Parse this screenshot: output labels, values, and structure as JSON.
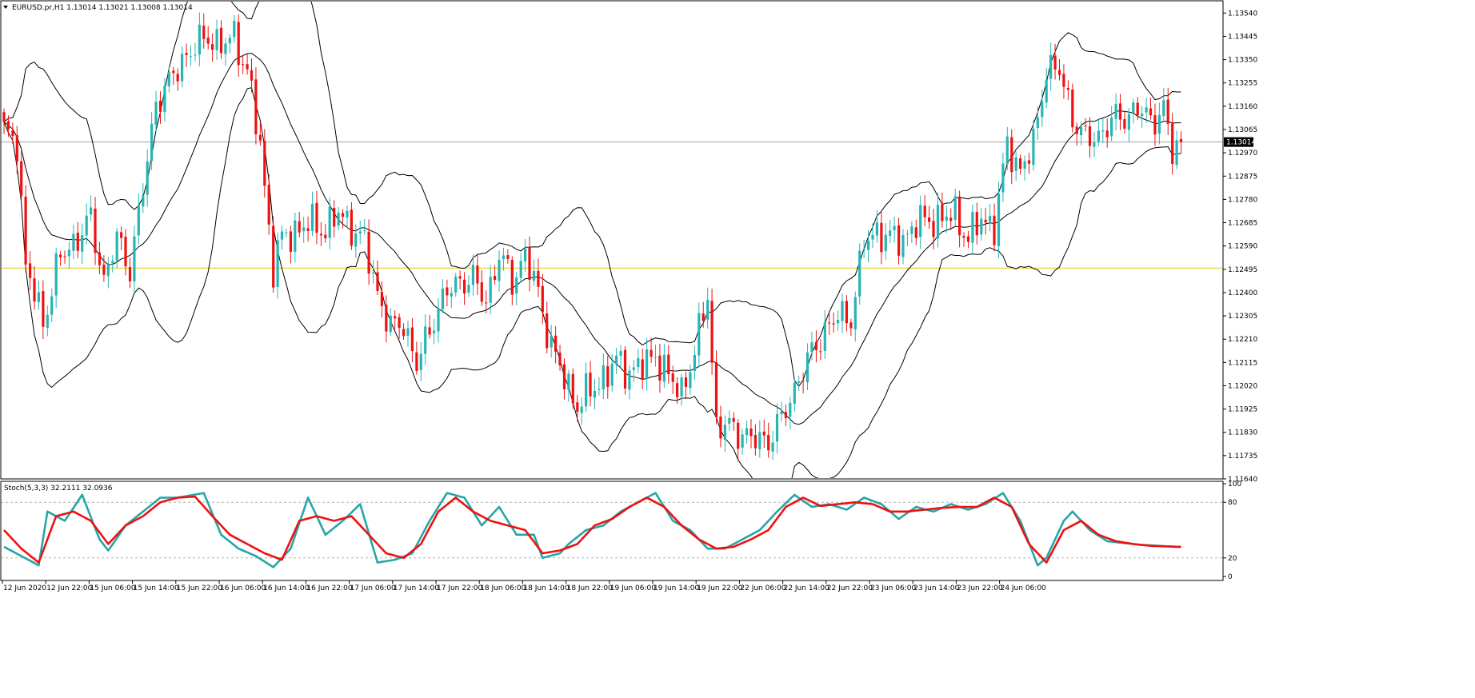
{
  "header": {
    "symbol_info": "EURUSD.pr,H1  1.13014 1.13021 1.13008 1.13014",
    "dropdown_icon": "triangle-down-icon"
  },
  "indicator": {
    "label": "Stoch(5,3,3) 32.2111 32.0936"
  },
  "colors": {
    "bull": "#26b5b5",
    "bear": "#ee1111",
    "bands": "#000000",
    "level_line": "#e8c800",
    "price_line": "#a0a0a0",
    "stoch_main": "#26a6a6",
    "stoch_signal": "#ee1111"
  },
  "chart_data": [
    {
      "type": "candlestick",
      "title": "EURUSD.pr,H1",
      "ylim": [
        1.1164,
        1.1359
      ],
      "y_ticks": [
        "1.13540",
        "1.13445",
        "1.13350",
        "1.13255",
        "1.13160",
        "1.13065",
        "1.12970",
        "1.12875",
        "1.12780",
        "1.12685",
        "1.12590",
        "1.12495",
        "1.12400",
        "1.12305",
        "1.12210",
        "1.12115",
        "1.12020",
        "1.11925",
        "1.11830",
        "1.11735",
        "1.11640"
      ],
      "current_price": "1.13014",
      "horizontal_level": 1.125,
      "indicators": [
        "Bollinger Bands"
      ],
      "close_anchors": [
        [
          0,
          1.1305
        ],
        [
          3,
          1.1302
        ],
        [
          5,
          1.125
        ],
        [
          7,
          1.124
        ],
        [
          9,
          1.1228
        ],
        [
          13,
          1.1255
        ],
        [
          17,
          1.1262
        ],
        [
          20,
          1.127
        ],
        [
          23,
          1.1245
        ],
        [
          26,
          1.1262
        ],
        [
          29,
          1.125
        ],
        [
          32,
          1.1282
        ],
        [
          35,
          1.1318
        ],
        [
          38,
          1.1325
        ],
        [
          41,
          1.1335
        ],
        [
          44,
          1.134
        ],
        [
          47,
          1.1345
        ],
        [
          50,
          1.134
        ],
        [
          53,
          1.1345
        ],
        [
          56,
          1.133
        ],
        [
          59,
          1.13
        ],
        [
          62,
          1.125
        ],
        [
          64,
          1.1262
        ],
        [
          67,
          1.1265
        ],
        [
          70,
          1.1268
        ],
        [
          74,
          1.1266
        ],
        [
          77,
          1.1272
        ],
        [
          80,
          1.1267
        ],
        [
          83,
          1.126
        ],
        [
          86,
          1.124
        ],
        [
          89,
          1.1225
        ],
        [
          92,
          1.1228
        ],
        [
          95,
          1.121
        ],
        [
          99,
          1.123
        ],
        [
          102,
          1.124
        ],
        [
          105,
          1.1245
        ],
        [
          108,
          1.1245
        ],
        [
          111,
          1.1237
        ],
        [
          114,
          1.1255
        ],
        [
          117,
          1.1245
        ],
        [
          120,
          1.1255
        ],
        [
          123,
          1.124
        ],
        [
          126,
          1.1218
        ],
        [
          129,
          1.1205
        ],
        [
          132,
          1.1194
        ],
        [
          135,
          1.12
        ],
        [
          138,
          1.1205
        ],
        [
          141,
          1.1212
        ],
        [
          144,
          1.1208
        ],
        [
          147,
          1.121
        ],
        [
          150,
          1.1215
        ],
        [
          153,
          1.1205
        ],
        [
          156,
          1.12
        ],
        [
          159,
          1.1215
        ],
        [
          162,
          1.124
        ],
        [
          164,
          1.1185
        ],
        [
          168,
          1.1185
        ],
        [
          172,
          1.118
        ],
        [
          176,
          1.118
        ],
        [
          179,
          1.1188
        ],
        [
          183,
          1.1205
        ],
        [
          186,
          1.1215
        ],
        [
          189,
          1.1225
        ],
        [
          192,
          1.123
        ],
        [
          195,
          1.123
        ],
        [
          198,
          1.126
        ],
        [
          201,
          1.1265
        ],
        [
          204,
          1.1262
        ],
        [
          207,
          1.1262
        ],
        [
          210,
          1.1268
        ],
        [
          213,
          1.127
        ],
        [
          216,
          1.127
        ],
        [
          219,
          1.1272
        ],
        [
          222,
          1.1262
        ],
        [
          225,
          1.127
        ],
        [
          228,
          1.1267
        ],
        [
          231,
          1.13
        ],
        [
          234,
          1.129
        ],
        [
          237,
          1.13
        ],
        [
          240,
          1.1332
        ],
        [
          243,
          1.133
        ],
        [
          246,
          1.1312
        ],
        [
          249,
          1.1302
        ],
        [
          252,
          1.1304
        ],
        [
          255,
          1.131
        ],
        [
          258,
          1.1312
        ],
        [
          261,
          1.1315
        ],
        [
          264,
          1.131
        ],
        [
          267,
          1.1315
        ],
        [
          269,
          1.1297
        ],
        [
          271,
          1.1301
        ]
      ]
    },
    {
      "type": "line",
      "title": "Stoch(5,3,3)",
      "ylim": [
        0,
        100
      ],
      "y_ticks": [
        "100",
        "80",
        "20",
        "0"
      ],
      "levels": [
        80,
        20
      ],
      "current_values": [
        32.2111,
        32.0936
      ],
      "series": [
        {
          "name": "Main",
          "anchors": [
            [
              0,
              32
            ],
            [
              4,
              22
            ],
            [
              8,
              12
            ],
            [
              10,
              70
            ],
            [
              14,
              60
            ],
            [
              18,
              88
            ],
            [
              22,
              40
            ],
            [
              24,
              28
            ],
            [
              28,
              55
            ],
            [
              32,
              70
            ],
            [
              36,
              85
            ],
            [
              40,
              85
            ],
            [
              46,
              90
            ],
            [
              50,
              45
            ],
            [
              54,
              30
            ],
            [
              58,
              22
            ],
            [
              62,
              10
            ],
            [
              66,
              30
            ],
            [
              70,
              85
            ],
            [
              74,
              45
            ],
            [
              78,
              60
            ],
            [
              82,
              78
            ],
            [
              86,
              15
            ],
            [
              90,
              18
            ],
            [
              94,
              25
            ],
            [
              98,
              60
            ],
            [
              102,
              90
            ],
            [
              106,
              85
            ],
            [
              110,
              55
            ],
            [
              114,
              75
            ],
            [
              118,
              45
            ],
            [
              122,
              45
            ],
            [
              124,
              20
            ],
            [
              128,
              25
            ],
            [
              130,
              35
            ],
            [
              134,
              50
            ],
            [
              138,
              55
            ],
            [
              142,
              70
            ],
            [
              146,
              80
            ],
            [
              150,
              90
            ],
            [
              154,
              60
            ],
            [
              158,
              50
            ],
            [
              162,
              30
            ],
            [
              166,
              30
            ],
            [
              170,
              40
            ],
            [
              174,
              50
            ],
            [
              178,
              70
            ],
            [
              182,
              88
            ],
            [
              186,
              75
            ],
            [
              190,
              78
            ],
            [
              194,
              72
            ],
            [
              198,
              85
            ],
            [
              202,
              78
            ],
            [
              206,
              62
            ],
            [
              210,
              75
            ],
            [
              214,
              70
            ],
            [
              218,
              78
            ],
            [
              222,
              72
            ],
            [
              226,
              78
            ],
            [
              230,
              90
            ],
            [
              234,
              60
            ],
            [
              238,
              12
            ],
            [
              240,
              20
            ],
            [
              244,
              60
            ],
            [
              246,
              70
            ],
            [
              250,
              50
            ],
            [
              254,
              38
            ],
            [
              258,
              36
            ],
            [
              262,
              34
            ],
            [
              266,
              33
            ],
            [
              270,
              32
            ]
          ]
        },
        {
          "name": "Signal",
          "anchors": [
            [
              0,
              50
            ],
            [
              4,
              30
            ],
            [
              8,
              15
            ],
            [
              12,
              65
            ],
            [
              16,
              70
            ],
            [
              20,
              60
            ],
            [
              24,
              35
            ],
            [
              28,
              55
            ],
            [
              32,
              65
            ],
            [
              36,
              80
            ],
            [
              40,
              85
            ],
            [
              44,
              86
            ],
            [
              48,
              65
            ],
            [
              52,
              45
            ],
            [
              56,
              35
            ],
            [
              60,
              25
            ],
            [
              64,
              18
            ],
            [
              68,
              60
            ],
            [
              72,
              65
            ],
            [
              76,
              60
            ],
            [
              80,
              65
            ],
            [
              84,
              45
            ],
            [
              88,
              25
            ],
            [
              92,
              20
            ],
            [
              96,
              35
            ],
            [
              100,
              70
            ],
            [
              104,
              85
            ],
            [
              108,
              70
            ],
            [
              112,
              60
            ],
            [
              116,
              55
            ],
            [
              120,
              50
            ],
            [
              124,
              25
            ],
            [
              128,
              28
            ],
            [
              132,
              35
            ],
            [
              136,
              55
            ],
            [
              140,
              62
            ],
            [
              144,
              75
            ],
            [
              148,
              85
            ],
            [
              152,
              75
            ],
            [
              156,
              55
            ],
            [
              160,
              40
            ],
            [
              164,
              30
            ],
            [
              168,
              32
            ],
            [
              172,
              40
            ],
            [
              176,
              50
            ],
            [
              180,
              75
            ],
            [
              184,
              85
            ],
            [
              188,
              76
            ],
            [
              192,
              78
            ],
            [
              196,
              80
            ],
            [
              200,
              78
            ],
            [
              204,
              70
            ],
            [
              208,
              70
            ],
            [
              212,
              72
            ],
            [
              216,
              74
            ],
            [
              220,
              75
            ],
            [
              224,
              75
            ],
            [
              228,
              85
            ],
            [
              232,
              75
            ],
            [
              236,
              35
            ],
            [
              240,
              15
            ],
            [
              244,
              50
            ],
            [
              248,
              60
            ],
            [
              252,
              45
            ],
            [
              256,
              38
            ],
            [
              260,
              35
            ],
            [
              264,
              33
            ],
            [
              270,
              32
            ]
          ]
        }
      ]
    }
  ],
  "x_axis": {
    "labels": [
      "12 Jun 2020",
      "12 Jun 22:00",
      "15 Jun 06:00",
      "15 Jun 14:00",
      "15 Jun 22:00",
      "16 Jun 06:00",
      "16 Jun 14:00",
      "16 Jun 22:00",
      "17 Jun 06:00",
      "17 Jun 14:00",
      "17 Jun 22:00",
      "18 Jun 06:00",
      "18 Jun 14:00",
      "18 Jun 22:00",
      "19 Jun 06:00",
      "19 Jun 14:00",
      "19 Jun 22:00",
      "22 Jun 06:00",
      "22 Jun 14:00",
      "22 Jun 22:00",
      "23 Jun 06:00",
      "23 Jun 14:00",
      "23 Jun 22:00",
      "24 Jun 06:00"
    ]
  }
}
